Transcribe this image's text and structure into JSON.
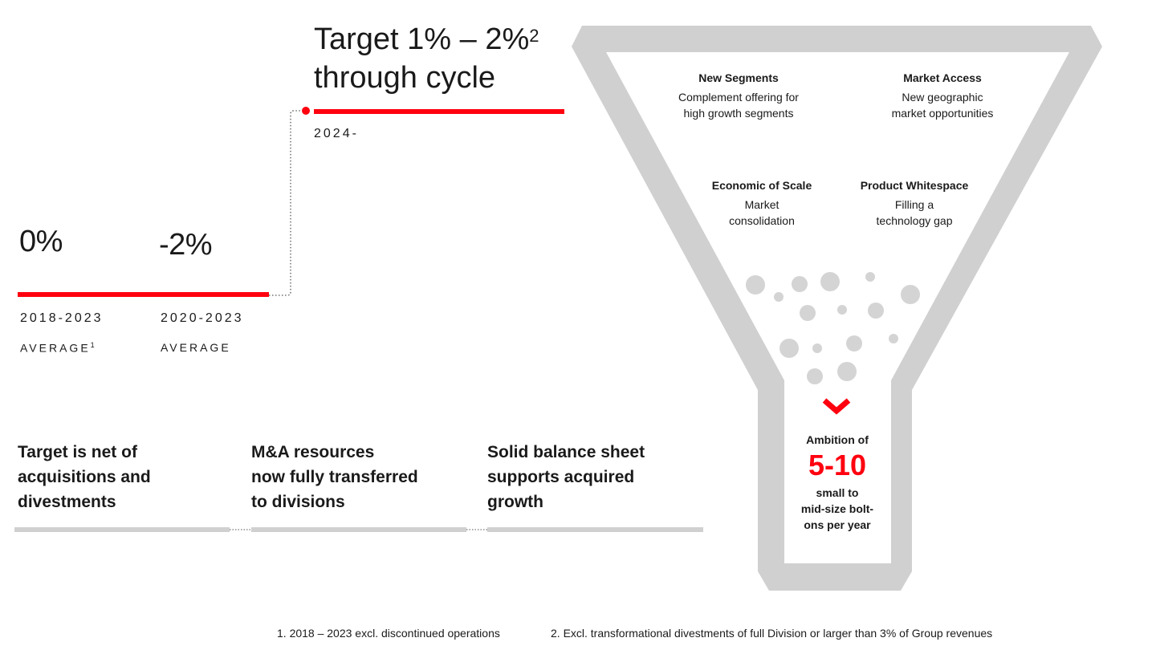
{
  "history": {
    "items": [
      {
        "value": "0%",
        "period": "2018-2023",
        "label": "AVERAGE",
        "label_sup": "1"
      },
      {
        "value": "-2%",
        "period": "2020-2023",
        "label": "AVERAGE",
        "label_sup": ""
      }
    ]
  },
  "target": {
    "line1": "Target 1% – 2%",
    "line1_sup": "2",
    "line2": "through cycle",
    "period": "2024-"
  },
  "points": [
    {
      "line1": "Target is net of",
      "line2": "acquisitions and",
      "line3": "divestments"
    },
    {
      "line1": "M&A resources",
      "line2": "now fully transferred",
      "line3": "to divisions"
    },
    {
      "line1": "Solid balance sheet",
      "line2": "supports acquired",
      "line3": "growth"
    }
  ],
  "funnel": {
    "items": [
      {
        "title": "New Segments",
        "line1": "Complement offering for",
        "line2": "high growth segments"
      },
      {
        "title": "Market Access",
        "line1": "New geographic",
        "line2": "market opportunities"
      },
      {
        "title": "Economic of Scale",
        "line1": "Market",
        "line2": "consolidation"
      },
      {
        "title": "Product Whitespace",
        "line1": "Filling a",
        "line2": "technology gap"
      }
    ],
    "ambition": {
      "label": "Ambition of",
      "value": "5-10",
      "line1": "small to",
      "line2": "mid-size bolt-",
      "line3": "ons per year"
    }
  },
  "footnotes": {
    "note1": "1. 2018 – 2023 excl. discontinued operations",
    "note2": "2. Excl. transformational divestments of full Division or larger than 3% of Group revenues"
  },
  "colors": {
    "accent_red": "#ff000f",
    "funnel_grey": "#d0d0d0",
    "bubble_grey": "#d4d4d4",
    "text": "#1a1a1a"
  }
}
